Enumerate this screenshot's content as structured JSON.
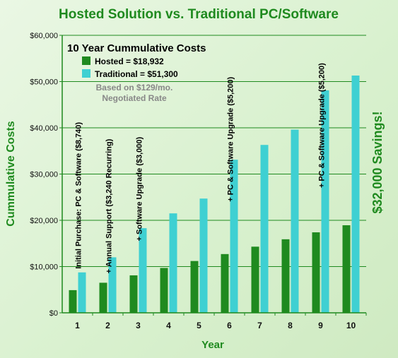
{
  "chart_data": {
    "type": "bar",
    "title": "Hosted Solution vs. Traditional PC/Software",
    "xlabel": "Year",
    "ylabel": "Cummulative Costs",
    "ylim": [
      0,
      60000
    ],
    "yticks": [
      "$0",
      "$10,000",
      "$20,000",
      "$30,000",
      "$40,000",
      "$50,000",
      "$60,000"
    ],
    "ytick_values": [
      0,
      10000,
      20000,
      30000,
      40000,
      50000,
      60000
    ],
    "categories": [
      "1",
      "2",
      "3",
      "4",
      "5",
      "6",
      "7",
      "8",
      "9",
      "10"
    ],
    "grid": true,
    "legend_position": "top-left",
    "legend_title": "10 Year Cummulative Costs",
    "series": [
      {
        "name": "Hosted = $18,932",
        "color": "#1f8a1f",
        "values": [
          4900,
          6500,
          8100,
          9700,
          11200,
          12700,
          14300,
          15900,
          17400,
          18932
        ]
      },
      {
        "name": "Traditional = $51,300",
        "color": "#3fd0d2",
        "values": [
          8740,
          12000,
          18300,
          21500,
          24700,
          33100,
          36300,
          39600,
          48100,
          51300
        ]
      }
    ],
    "note_lines": [
      "Based on $129/mo.",
      "Negotiated Rate"
    ],
    "annotations": [
      {
        "category": "1",
        "value": 9500,
        "text": "Initial Purchase: PC & Software ($8,740)"
      },
      {
        "category": "2",
        "value": 8500,
        "text": "+ Annual Support ($3,240 Recurring)"
      },
      {
        "category": "3",
        "value": 15500,
        "text": "+ Software Upgrade ($3,000)"
      },
      {
        "category": "6",
        "value": 24000,
        "text": "+ PC & Software Upgrade ($5,200)"
      },
      {
        "category": "9",
        "value": 27000,
        "text": "+ PC & Software Upgrade ($5,200)"
      }
    ],
    "side_label": "$32,000 Savings!"
  }
}
